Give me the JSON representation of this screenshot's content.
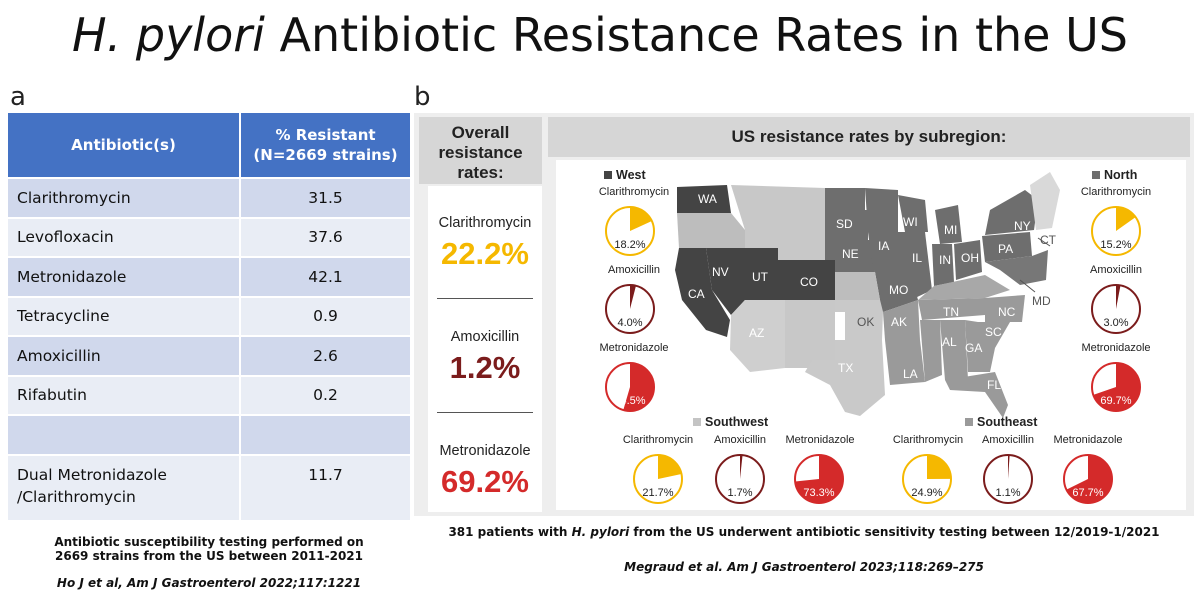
{
  "title": {
    "italic": "H. pylori",
    "rest": " Antibiotic Resistance Rates in the US"
  },
  "panel_a_label": "a",
  "panel_b_label": "b",
  "table": {
    "headers": [
      "Antibiotic(s)",
      "% Resistant",
      "(N=2669 strains)"
    ],
    "rows": [
      {
        "name": "Clarithromycin",
        "value": "31.5"
      },
      {
        "name": "Levofloxacin",
        "value": "37.6"
      },
      {
        "name": "Metronidazole",
        "value": "42.1"
      },
      {
        "name": "Tetracycline",
        "value": "0.9"
      },
      {
        "name": "Amoxicillin",
        "value": "2.6"
      },
      {
        "name": "Rifabutin",
        "value": "0.2"
      },
      {
        "name": "",
        "value": ""
      }
    ],
    "dual": {
      "line1": "Dual Metronidazole",
      "line2": "/Clarithromycin",
      "value": "11.7"
    }
  },
  "foot_a": {
    "line1": "Antibiotic susceptibility testing performed on",
    "line2": "2669 strains from the US between 2011-2021",
    "citation": "Ho J et al,  Am J Gastroenterol 2022;117:1221"
  },
  "overall": {
    "heading": [
      "Overall",
      "resistance",
      "rates:"
    ],
    "items": [
      {
        "name": "Clarithromycin",
        "value": "22.2%",
        "color": "#f5b800"
      },
      {
        "name": "Amoxicillin",
        "value": "1.2%",
        "color": "#7b1c1c"
      },
      {
        "name": "Metronidazole",
        "value": "69.2%",
        "color": "#d42a2a"
      }
    ]
  },
  "subregion_heading": "US resistance rates by subregion:",
  "states": [
    "WA",
    "CA",
    "NV",
    "UT",
    "CO",
    "AZ",
    "SD",
    "NE",
    "IA",
    "WI",
    "MI",
    "IL",
    "IN",
    "OH",
    "NY",
    "PA",
    "CT",
    "MD",
    "MO",
    "OK",
    "TX",
    "AK",
    "TN",
    "NC",
    "SC",
    "AL",
    "GA",
    "LA",
    "FL"
  ],
  "foot_b": {
    "pre": "381 patients with ",
    "italic": "H. pylori",
    "post": " from the US underwent antibiotic sensitivity testing between 12/2019-1/2021",
    "citation": "Megraud et al.  Am J Gastroenterol 2023;118:269–275"
  },
  "chart_data": {
    "type": "pie",
    "title": "US resistance rates by subregion:",
    "regions": [
      {
        "name": "West",
        "pies": [
          {
            "antibiotic": "Clarithromycin",
            "value": 18.2,
            "label": "18.2%"
          },
          {
            "antibiotic": "Amoxicillin",
            "value": 4.0,
            "label": "4.0%"
          },
          {
            "antibiotic": "Metronidazole",
            "value": 54.5,
            "label": "54.5%"
          }
        ]
      },
      {
        "name": "North",
        "pies": [
          {
            "antibiotic": "Clarithromycin",
            "value": 15.2,
            "label": "15.2%"
          },
          {
            "antibiotic": "Amoxicillin",
            "value": 3.0,
            "label": "3.0%"
          },
          {
            "antibiotic": "Metronidazole",
            "value": 69.7,
            "label": "69.7%"
          }
        ]
      },
      {
        "name": "Southwest",
        "pies": [
          {
            "antibiotic": "Clarithromycin",
            "value": 21.7,
            "label": "21.7%"
          },
          {
            "antibiotic": "Amoxicillin",
            "value": 1.7,
            "label": "1.7%"
          },
          {
            "antibiotic": "Metronidazole",
            "value": 73.3,
            "label": "73.3%"
          }
        ]
      },
      {
        "name": "Southeast",
        "pies": [
          {
            "antibiotic": "Clarithromycin",
            "value": 24.9,
            "label": "24.9%"
          },
          {
            "antibiotic": "Amoxicillin",
            "value": 1.1,
            "label": "1.1%"
          },
          {
            "antibiotic": "Metronidazole",
            "value": 67.7,
            "label": "67.7%"
          }
        ]
      }
    ],
    "colors": {
      "Clarithromycin": "#f5b800",
      "Amoxicillin": "#7b1c1c",
      "Metronidazole": "#d42a2a"
    },
    "region_colors": {
      "West": "#444444",
      "North": "#6e6e6e",
      "Southwest": "#c4c4c4",
      "Southeast": "#9a9a9a"
    }
  }
}
